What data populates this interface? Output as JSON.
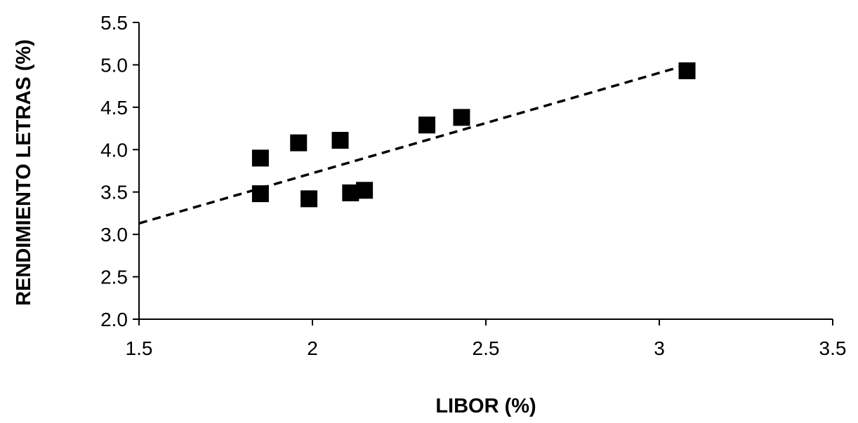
{
  "chart_data": {
    "type": "scatter",
    "title": "",
    "xlabel": "LIBOR (%)",
    "ylabel": "RENDIMIENTO LETRAS (%)",
    "xlim": [
      1.5,
      3.5
    ],
    "ylim": [
      2.0,
      5.5
    ],
    "x_ticks": [
      "1.5",
      "2",
      "2.5",
      "3",
      "3.5"
    ],
    "y_ticks": [
      "2.0",
      "2.5",
      "3.0",
      "3.5",
      "4.0",
      "4.5",
      "5.0",
      "5.5"
    ],
    "grid": false,
    "legend": "none",
    "series": [
      {
        "marker": "square",
        "color": "#000000",
        "points": [
          {
            "x": 1.85,
            "y": 3.9
          },
          {
            "x": 1.85,
            "y": 3.48
          },
          {
            "x": 1.96,
            "y": 4.08
          },
          {
            "x": 1.99,
            "y": 3.42
          },
          {
            "x": 2.08,
            "y": 4.11
          },
          {
            "x": 2.11,
            "y": 3.49
          },
          {
            "x": 2.15,
            "y": 3.52
          },
          {
            "x": 2.33,
            "y": 4.29
          },
          {
            "x": 2.43,
            "y": 4.38
          },
          {
            "x": 3.08,
            "y": 4.93
          }
        ]
      }
    ],
    "trendline": {
      "style": "dashed",
      "color": "#000000",
      "x": [
        1.5,
        3.08
      ],
      "y": [
        3.13,
        5.0
      ]
    }
  }
}
